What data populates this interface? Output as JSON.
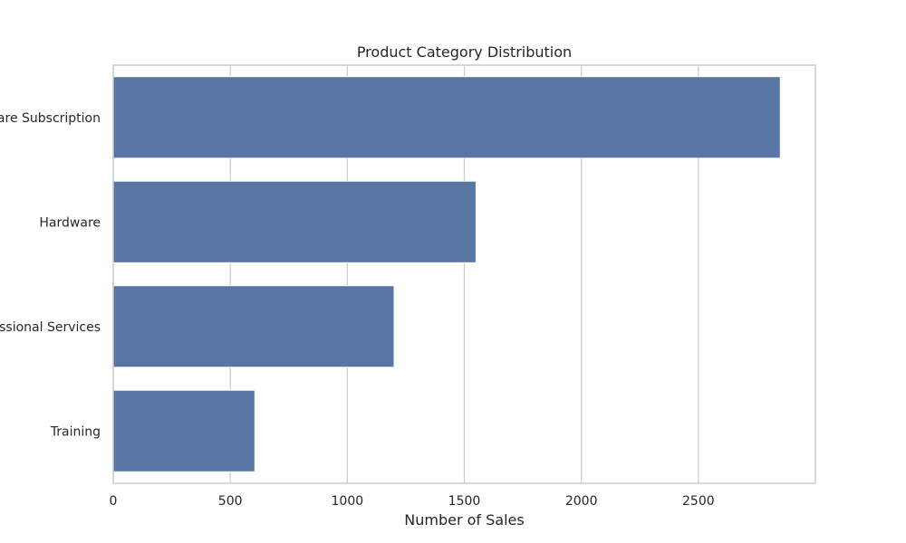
{
  "chart_data": {
    "type": "bar",
    "orientation": "horizontal",
    "title": "Product Category Distribution",
    "xlabel": "Number of Sales",
    "ylabel": "",
    "categories": [
      "Software Subscription",
      "Hardware",
      "Professional Services",
      "Training"
    ],
    "values": [
      2850,
      1550,
      1200,
      605
    ],
    "xlim": [
      0,
      3000
    ],
    "x_ticks": [
      0,
      500,
      1000,
      1500,
      2000,
      2500
    ],
    "grid": "vertical",
    "bar_color": "#5975a4",
    "grid_color": "#cccccc",
    "frame_color": "#cccccc"
  }
}
